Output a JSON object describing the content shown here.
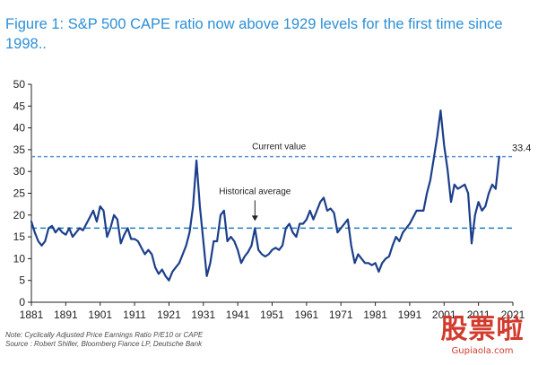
{
  "figure": {
    "title": "Figure 1: S&P 500 CAPE ratio now above 1929 levels for the first time since 1998..",
    "note": "Note: Cyclically Adjusted Price Earnings Ratio P/E10 or CAPE",
    "source": "Source : Robert Shiller, Bloomberg Fiance LP, Deutsche Bank"
  },
  "watermark": {
    "chars": "股票啦",
    "domain": "Gupiaola.com"
  },
  "chart_data": {
    "type": "line",
    "title": "",
    "xlabel": "",
    "ylabel": "",
    "xlim": [
      1881,
      2017
    ],
    "ylim": [
      0,
      50
    ],
    "x_ticks": [
      1881,
      1891,
      1901,
      1911,
      1921,
      1931,
      1941,
      1951,
      1961,
      1971,
      1981,
      1991,
      2001,
      2011,
      2021
    ],
    "y_ticks": [
      0,
      5,
      10,
      15,
      20,
      25,
      30,
      35,
      40,
      45,
      50
    ],
    "grid": false,
    "legend": "none",
    "line_color": "#1c3f8a",
    "series": [
      {
        "values": [
          [
            1881,
            18.5
          ],
          [
            1882,
            16
          ],
          [
            1883,
            14
          ],
          [
            1884,
            13
          ],
          [
            1885,
            14
          ],
          [
            1886,
            17
          ],
          [
            1887,
            17.5
          ],
          [
            1888,
            16
          ],
          [
            1889,
            17
          ],
          [
            1890,
            16
          ],
          [
            1891,
            15.5
          ],
          [
            1892,
            17
          ],
          [
            1893,
            15
          ],
          [
            1894,
            16
          ],
          [
            1895,
            17
          ],
          [
            1896,
            16.5
          ],
          [
            1897,
            18
          ],
          [
            1898,
            19.5
          ],
          [
            1899,
            21
          ],
          [
            1900,
            18.5
          ],
          [
            1901,
            22
          ],
          [
            1902,
            21
          ],
          [
            1903,
            15
          ],
          [
            1904,
            17
          ],
          [
            1905,
            20
          ],
          [
            1906,
            19
          ],
          [
            1907,
            13.5
          ],
          [
            1908,
            15.5
          ],
          [
            1909,
            17
          ],
          [
            1910,
            14.5
          ],
          [
            1911,
            14.5
          ],
          [
            1912,
            14
          ],
          [
            1913,
            12.5
          ],
          [
            1914,
            11
          ],
          [
            1915,
            12
          ],
          [
            1916,
            11
          ],
          [
            1917,
            8
          ],
          [
            1918,
            6.5
          ],
          [
            1919,
            7.5
          ],
          [
            1920,
            6
          ],
          [
            1921,
            5
          ],
          [
            1922,
            7
          ],
          [
            1923,
            8
          ],
          [
            1924,
            9
          ],
          [
            1925,
            11
          ],
          [
            1926,
            13
          ],
          [
            1927,
            16
          ],
          [
            1928,
            22
          ],
          [
            1929,
            32.5
          ],
          [
            1930,
            22
          ],
          [
            1931,
            14
          ],
          [
            1932,
            6
          ],
          [
            1933,
            9
          ],
          [
            1934,
            14
          ],
          [
            1935,
            14
          ],
          [
            1936,
            20
          ],
          [
            1937,
            21
          ],
          [
            1938,
            14
          ],
          [
            1939,
            15
          ],
          [
            1940,
            14
          ],
          [
            1941,
            12
          ],
          [
            1942,
            9
          ],
          [
            1943,
            10.5
          ],
          [
            1944,
            11.5
          ],
          [
            1945,
            13
          ],
          [
            1946,
            17
          ],
          [
            1947,
            12
          ],
          [
            1948,
            11
          ],
          [
            1949,
            10.5
          ],
          [
            1950,
            11
          ],
          [
            1951,
            12
          ],
          [
            1952,
            12.5
          ],
          [
            1953,
            12
          ],
          [
            1954,
            13
          ],
          [
            1955,
            17
          ],
          [
            1956,
            18
          ],
          [
            1957,
            16
          ],
          [
            1958,
            15
          ],
          [
            1959,
            18
          ],
          [
            1960,
            18
          ],
          [
            1961,
            19
          ],
          [
            1962,
            21
          ],
          [
            1963,
            19
          ],
          [
            1964,
            21
          ],
          [
            1965,
            23
          ],
          [
            1966,
            24
          ],
          [
            1967,
            21
          ],
          [
            1968,
            21.5
          ],
          [
            1969,
            20.5
          ],
          [
            1970,
            16
          ],
          [
            1971,
            17
          ],
          [
            1972,
            18
          ],
          [
            1973,
            19
          ],
          [
            1974,
            13
          ],
          [
            1975,
            9
          ],
          [
            1976,
            11
          ],
          [
            1977,
            10
          ],
          [
            1978,
            9
          ],
          [
            1979,
            9
          ],
          [
            1980,
            8.5
          ],
          [
            1981,
            9
          ],
          [
            1982,
            7
          ],
          [
            1983,
            9
          ],
          [
            1984,
            10
          ],
          [
            1985,
            10.5
          ],
          [
            1986,
            13
          ],
          [
            1987,
            15
          ],
          [
            1988,
            14
          ],
          [
            1989,
            16
          ],
          [
            1990,
            17
          ],
          [
            1991,
            18
          ],
          [
            1992,
            19.5
          ],
          [
            1993,
            21
          ],
          [
            1994,
            21
          ],
          [
            1995,
            21
          ],
          [
            1996,
            25
          ],
          [
            1997,
            28
          ],
          [
            1998,
            33
          ],
          [
            1999,
            38
          ],
          [
            2000,
            44
          ],
          [
            2001,
            36
          ],
          [
            2002,
            30.5
          ],
          [
            2003,
            23
          ],
          [
            2004,
            27
          ],
          [
            2005,
            26
          ],
          [
            2006,
            26.5
          ],
          [
            2007,
            27
          ],
          [
            2008,
            25
          ],
          [
            2009,
            13.5
          ],
          [
            2010,
            20
          ],
          [
            2011,
            23
          ],
          [
            2012,
            21
          ],
          [
            2013,
            22
          ],
          [
            2014,
            25
          ],
          [
            2015,
            27
          ],
          [
            2016,
            26
          ],
          [
            2017,
            33.4
          ]
        ]
      }
    ],
    "reference_lines": [
      {
        "label": "Current value",
        "value": 33.4,
        "value_label": "33.4",
        "color": "#5a93d8",
        "dash": "4,3"
      },
      {
        "label": "Historical average",
        "value": 17,
        "color": "#1f7fc0",
        "dash": "6,4"
      }
    ],
    "annotations": [
      {
        "text": "Historical average",
        "x": 1946,
        "y": 17,
        "arrow": true
      },
      {
        "text": "Current value",
        "x": 1953,
        "y": 33.4
      }
    ]
  }
}
